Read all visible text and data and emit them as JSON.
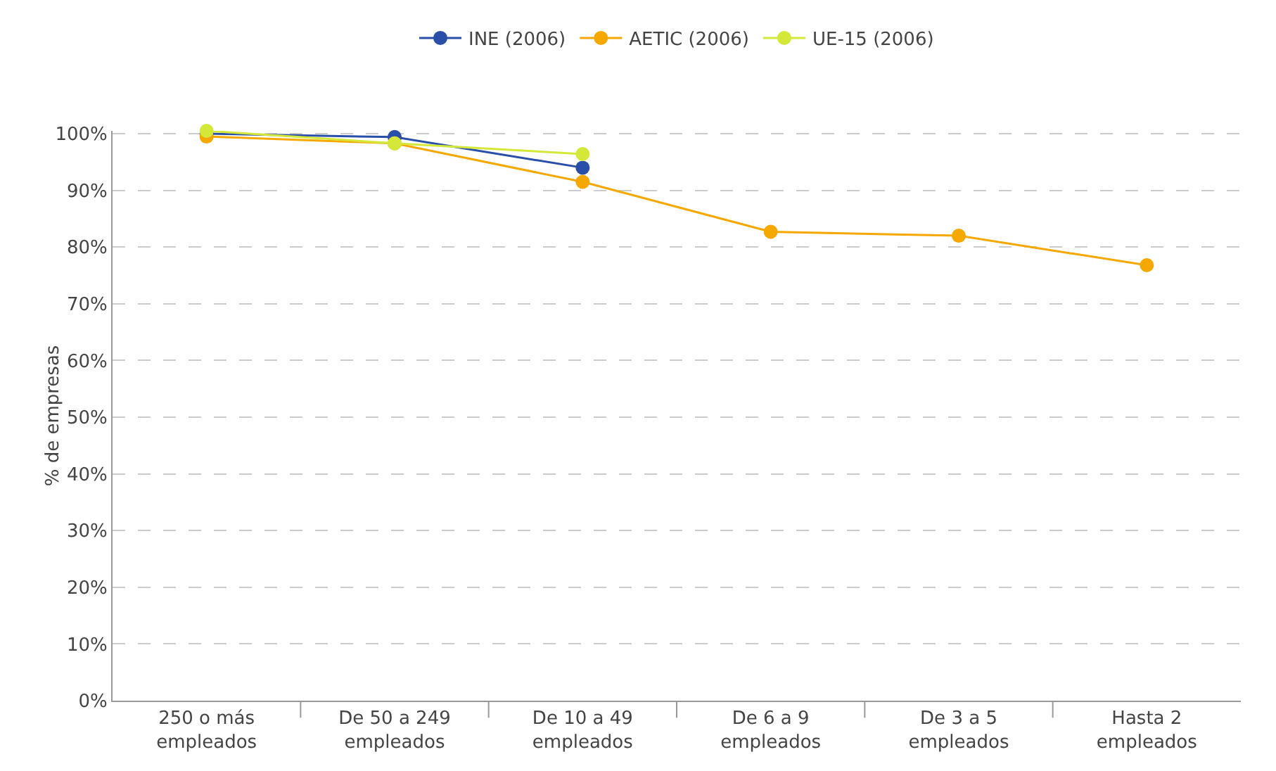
{
  "chart_data": {
    "type": "line",
    "ylabel": "% de empresas",
    "categories": [
      "250 o más\nempleados",
      "De 50 a 249\nempleados",
      "De 10 a 49\nempleados",
      "De 6 a 9\nempleados",
      "De 3 a 5\nempleados",
      "Hasta 2\nempleados"
    ],
    "series": [
      {
        "name": "INE (2006)",
        "color": "#2a4fa8",
        "values": [
          100,
          99.4,
          94,
          null,
          null,
          null
        ]
      },
      {
        "name": "AETIC (2006)",
        "color": "#f5a800",
        "values": [
          99.5,
          98.3,
          91.5,
          82.7,
          82,
          76.8
        ]
      },
      {
        "name": "UE-15 (2006)",
        "color": "#d4e83a",
        "values": [
          100.5,
          98.3,
          96.4,
          null,
          null,
          null
        ]
      }
    ],
    "ylim": [
      0,
      100.5
    ],
    "yticks": [
      {
        "value": 0,
        "label": "0%"
      },
      {
        "value": 10,
        "label": "10%"
      },
      {
        "value": 20,
        "label": "20%"
      },
      {
        "value": 30,
        "label": "30%"
      },
      {
        "value": 40,
        "label": "40%"
      },
      {
        "value": 50,
        "label": "50%"
      },
      {
        "value": 60,
        "label": "60%"
      },
      {
        "value": 70,
        "label": "70%"
      },
      {
        "value": 80,
        "label": "80%"
      },
      {
        "value": 90,
        "label": "90%"
      },
      {
        "value": 100,
        "label": "100%"
      }
    ],
    "grid": "y",
    "legend": "top",
    "marker": "circle",
    "line_style": "solid"
  }
}
